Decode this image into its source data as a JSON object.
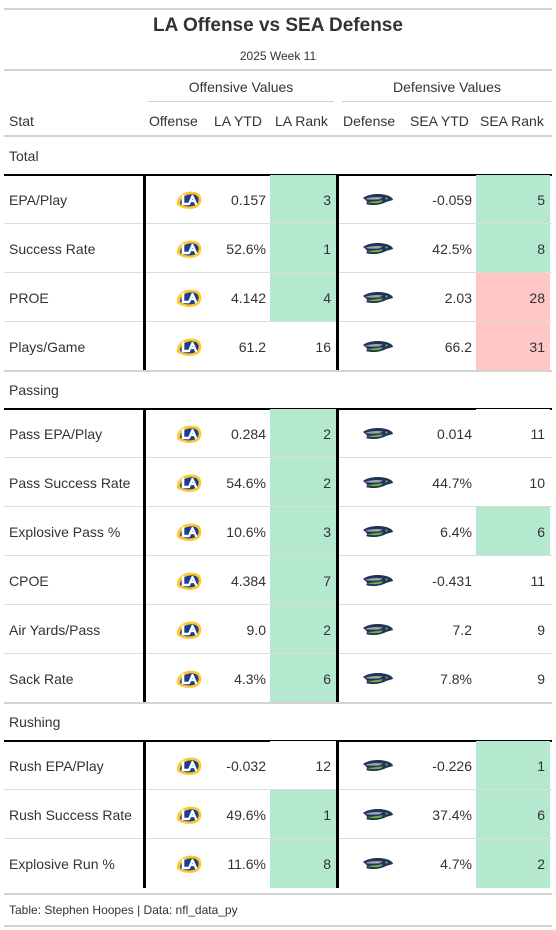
{
  "title": "LA Offense vs SEA Defense",
  "subtitle": "2025 Week 11",
  "spanners": {
    "offense": "Offensive Values",
    "defense": "Defensive Values"
  },
  "columns": [
    "Stat",
    "Offense",
    "LA YTD",
    "LA Rank",
    "Defense",
    "SEA YTD",
    "SEA Rank"
  ],
  "colors": {
    "good": "#b4e8cf",
    "bad": "#ffc6c6",
    "neutral": "#ffffff",
    "rams_blue": "#1b3f8f",
    "rams_gold": "#ffc72c",
    "seahawks_navy": "#22335a",
    "seahawks_green": "#6bb33a",
    "seahawks_grey": "#9aa3ae"
  },
  "icons": {
    "offense": "rams-logo-icon",
    "defense": "seahawks-logo-icon"
  },
  "footer": "Table: Stephen Hoopes | Data: nfl_data_py",
  "chart_data": {
    "type": "table",
    "groups": [
      {
        "name": "Total",
        "rows": [
          {
            "stat": "EPA/Play",
            "la_ytd": "0.157",
            "la_rank": 3,
            "sea_ytd": "-0.059",
            "sea_rank": 5
          },
          {
            "stat": "Success Rate",
            "la_ytd": "52.6%",
            "la_rank": 1,
            "sea_ytd": "42.5%",
            "sea_rank": 8
          },
          {
            "stat": "PROE",
            "la_ytd": "4.142",
            "la_rank": 4,
            "sea_ytd": "2.03",
            "sea_rank": 28
          },
          {
            "stat": "Plays/Game",
            "la_ytd": "61.2",
            "la_rank": 16,
            "sea_ytd": "66.2",
            "sea_rank": 31
          }
        ]
      },
      {
        "name": "Passing",
        "rows": [
          {
            "stat": "Pass EPA/Play",
            "la_ytd": "0.284",
            "la_rank": 2,
            "sea_ytd": "0.014",
            "sea_rank": 11
          },
          {
            "stat": "Pass Success Rate",
            "la_ytd": "54.6%",
            "la_rank": 2,
            "sea_ytd": "44.7%",
            "sea_rank": 10
          },
          {
            "stat": "Explosive Pass %",
            "la_ytd": "10.6%",
            "la_rank": 3,
            "sea_ytd": "6.4%",
            "sea_rank": 6
          },
          {
            "stat": "CPOE",
            "la_ytd": "4.384",
            "la_rank": 7,
            "sea_ytd": "-0.431",
            "sea_rank": 11
          },
          {
            "stat": "Air Yards/Pass",
            "la_ytd": "9.0",
            "la_rank": 2,
            "sea_ytd": "7.2",
            "sea_rank": 9
          },
          {
            "stat": "Sack Rate",
            "la_ytd": "4.3%",
            "la_rank": 6,
            "sea_ytd": "7.8%",
            "sea_rank": 9
          }
        ]
      },
      {
        "name": "Rushing",
        "rows": [
          {
            "stat": "Rush EPA/Play",
            "la_ytd": "-0.032",
            "la_rank": 12,
            "sea_ytd": "-0.226",
            "sea_rank": 1
          },
          {
            "stat": "Rush Success Rate",
            "la_ytd": "49.6%",
            "la_rank": 1,
            "sea_ytd": "37.4%",
            "sea_rank": 6
          },
          {
            "stat": "Explosive Run %",
            "la_ytd": "11.6%",
            "la_rank": 8,
            "sea_ytd": "4.7%",
            "sea_rank": 2
          }
        ]
      }
    ]
  }
}
